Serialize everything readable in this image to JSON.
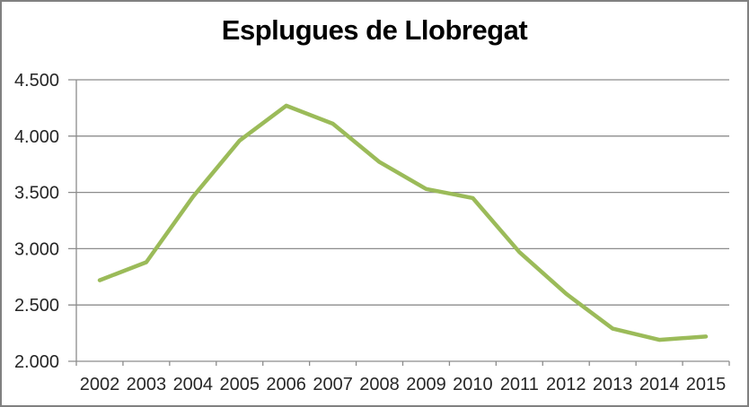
{
  "window": {
    "background": "#ffffff",
    "border_color": "#808080"
  },
  "chart_data": {
    "type": "line",
    "title": "Esplugues de Llobregat",
    "categories": [
      "2002",
      "2003",
      "2004",
      "2005",
      "2006",
      "2007",
      "2008",
      "2009",
      "2010",
      "2011",
      "2012",
      "2013",
      "2014",
      "2015"
    ],
    "values": [
      2720,
      2880,
      3460,
      3960,
      4270,
      4110,
      3770,
      3530,
      3450,
      2970,
      2600,
      2290,
      2190,
      2220
    ],
    "xlabel": "",
    "ylabel": "",
    "y_axis": {
      "min": 2000,
      "max": 4500,
      "step": 500,
      "ticks": [
        2000,
        2500,
        3000,
        3500,
        4000,
        4500
      ],
      "tick_labels": [
        "2.000",
        "2.500",
        "3.000",
        "3.500",
        "4.000",
        "4.500"
      ]
    },
    "grid": true,
    "legend": "none",
    "colors": {
      "line": "#9bbb59",
      "gridline": "#8c8c8c",
      "axis_line": "#8c8c8c",
      "tick_label": "#262626",
      "title": "#000000"
    }
  }
}
